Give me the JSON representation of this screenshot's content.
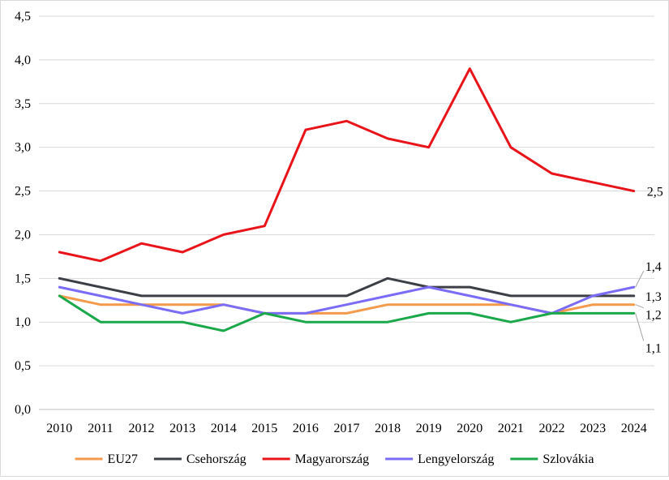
{
  "chart_data": {
    "type": "line",
    "title": "",
    "xlabel": "",
    "ylabel": "",
    "x": [
      "2010",
      "2011",
      "2012",
      "2013",
      "2014",
      "2015",
      "2016",
      "2017",
      "2018",
      "2019",
      "2020",
      "2021",
      "2022",
      "2023",
      "2024"
    ],
    "y_ticks": [
      "0,0",
      "0,5",
      "1,0",
      "1,5",
      "2,0",
      "2,5",
      "3,0",
      "3,5",
      "4,0",
      "4,5"
    ],
    "ylim": [
      0,
      4.5
    ],
    "grid": true,
    "legend_position": "bottom",
    "series": [
      {
        "name": "EU27",
        "color": "#f39a4c",
        "values": [
          1.3,
          1.2,
          1.2,
          1.2,
          1.2,
          1.1,
          1.1,
          1.1,
          1.2,
          1.2,
          1.2,
          1.2,
          1.1,
          1.2,
          1.2
        ]
      },
      {
        "name": "Csehország",
        "color": "#3d3f47",
        "values": [
          1.5,
          1.4,
          1.3,
          1.3,
          1.3,
          1.3,
          1.3,
          1.3,
          1.5,
          1.4,
          1.4,
          1.3,
          1.3,
          1.3,
          1.3
        ]
      },
      {
        "name": "Magyarország",
        "color": "#e8141a",
        "values": [
          1.8,
          1.7,
          1.9,
          1.8,
          2.0,
          2.1,
          3.2,
          3.3,
          3.1,
          3.0,
          3.9,
          3.0,
          2.7,
          2.6,
          2.5
        ]
      },
      {
        "name": "Lengyelország",
        "color": "#7b6cf6",
        "values": [
          1.4,
          1.3,
          1.2,
          1.1,
          1.2,
          1.1,
          1.1,
          1.2,
          1.3,
          1.4,
          1.3,
          1.2,
          1.1,
          1.3,
          1.4
        ]
      },
      {
        "name": "Szlovákia",
        "color": "#1aa84a",
        "values": [
          1.3,
          1.0,
          1.0,
          1.0,
          0.9,
          1.1,
          1.0,
          1.0,
          1.0,
          1.1,
          1.1,
          1.0,
          1.1,
          1.1,
          1.1
        ]
      }
    ],
    "end_labels": [
      {
        "text": "2,5",
        "series": "Magyarország"
      },
      {
        "text": "1,4",
        "series": "Lengyelország"
      },
      {
        "text": "1,3",
        "series": "Csehország"
      },
      {
        "text": "1,2",
        "series": "EU27"
      },
      {
        "text": "1,1",
        "series": "Szlovákia"
      }
    ]
  }
}
